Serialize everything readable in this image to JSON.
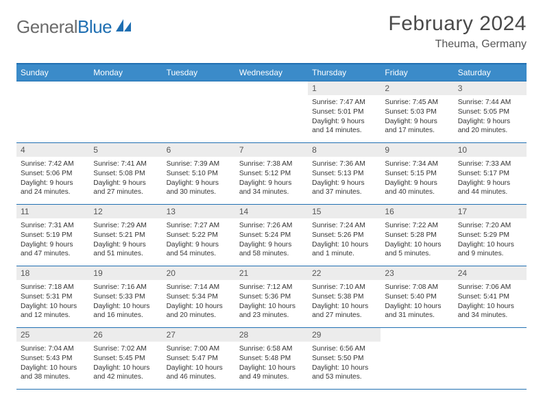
{
  "brand": {
    "part1": "General",
    "part2": "Blue"
  },
  "title": "February 2024",
  "location": "Theuma, Germany",
  "colors": {
    "header_bg": "#3b8bc9",
    "header_border": "#1f6fb2",
    "row_border": "#1f6fb2",
    "daynum_bg": "#ececec",
    "text": "#333333",
    "brand_gray": "#6b6b6b",
    "brand_blue": "#1f6fb2"
  },
  "weekdays": [
    "Sunday",
    "Monday",
    "Tuesday",
    "Wednesday",
    "Thursday",
    "Friday",
    "Saturday"
  ],
  "weeks": [
    [
      {
        "n": "",
        "sr": "",
        "ss": "",
        "dl": ""
      },
      {
        "n": "",
        "sr": "",
        "ss": "",
        "dl": ""
      },
      {
        "n": "",
        "sr": "",
        "ss": "",
        "dl": ""
      },
      {
        "n": "",
        "sr": "",
        "ss": "",
        "dl": ""
      },
      {
        "n": "1",
        "sr": "Sunrise: 7:47 AM",
        "ss": "Sunset: 5:01 PM",
        "dl": "Daylight: 9 hours and 14 minutes."
      },
      {
        "n": "2",
        "sr": "Sunrise: 7:45 AM",
        "ss": "Sunset: 5:03 PM",
        "dl": "Daylight: 9 hours and 17 minutes."
      },
      {
        "n": "3",
        "sr": "Sunrise: 7:44 AM",
        "ss": "Sunset: 5:05 PM",
        "dl": "Daylight: 9 hours and 20 minutes."
      }
    ],
    [
      {
        "n": "4",
        "sr": "Sunrise: 7:42 AM",
        "ss": "Sunset: 5:06 PM",
        "dl": "Daylight: 9 hours and 24 minutes."
      },
      {
        "n": "5",
        "sr": "Sunrise: 7:41 AM",
        "ss": "Sunset: 5:08 PM",
        "dl": "Daylight: 9 hours and 27 minutes."
      },
      {
        "n": "6",
        "sr": "Sunrise: 7:39 AM",
        "ss": "Sunset: 5:10 PM",
        "dl": "Daylight: 9 hours and 30 minutes."
      },
      {
        "n": "7",
        "sr": "Sunrise: 7:38 AM",
        "ss": "Sunset: 5:12 PM",
        "dl": "Daylight: 9 hours and 34 minutes."
      },
      {
        "n": "8",
        "sr": "Sunrise: 7:36 AM",
        "ss": "Sunset: 5:13 PM",
        "dl": "Daylight: 9 hours and 37 minutes."
      },
      {
        "n": "9",
        "sr": "Sunrise: 7:34 AM",
        "ss": "Sunset: 5:15 PM",
        "dl": "Daylight: 9 hours and 40 minutes."
      },
      {
        "n": "10",
        "sr": "Sunrise: 7:33 AM",
        "ss": "Sunset: 5:17 PM",
        "dl": "Daylight: 9 hours and 44 minutes."
      }
    ],
    [
      {
        "n": "11",
        "sr": "Sunrise: 7:31 AM",
        "ss": "Sunset: 5:19 PM",
        "dl": "Daylight: 9 hours and 47 minutes."
      },
      {
        "n": "12",
        "sr": "Sunrise: 7:29 AM",
        "ss": "Sunset: 5:21 PM",
        "dl": "Daylight: 9 hours and 51 minutes."
      },
      {
        "n": "13",
        "sr": "Sunrise: 7:27 AM",
        "ss": "Sunset: 5:22 PM",
        "dl": "Daylight: 9 hours and 54 minutes."
      },
      {
        "n": "14",
        "sr": "Sunrise: 7:26 AM",
        "ss": "Sunset: 5:24 PM",
        "dl": "Daylight: 9 hours and 58 minutes."
      },
      {
        "n": "15",
        "sr": "Sunrise: 7:24 AM",
        "ss": "Sunset: 5:26 PM",
        "dl": "Daylight: 10 hours and 1 minute."
      },
      {
        "n": "16",
        "sr": "Sunrise: 7:22 AM",
        "ss": "Sunset: 5:28 PM",
        "dl": "Daylight: 10 hours and 5 minutes."
      },
      {
        "n": "17",
        "sr": "Sunrise: 7:20 AM",
        "ss": "Sunset: 5:29 PM",
        "dl": "Daylight: 10 hours and 9 minutes."
      }
    ],
    [
      {
        "n": "18",
        "sr": "Sunrise: 7:18 AM",
        "ss": "Sunset: 5:31 PM",
        "dl": "Daylight: 10 hours and 12 minutes."
      },
      {
        "n": "19",
        "sr": "Sunrise: 7:16 AM",
        "ss": "Sunset: 5:33 PM",
        "dl": "Daylight: 10 hours and 16 minutes."
      },
      {
        "n": "20",
        "sr": "Sunrise: 7:14 AM",
        "ss": "Sunset: 5:34 PM",
        "dl": "Daylight: 10 hours and 20 minutes."
      },
      {
        "n": "21",
        "sr": "Sunrise: 7:12 AM",
        "ss": "Sunset: 5:36 PM",
        "dl": "Daylight: 10 hours and 23 minutes."
      },
      {
        "n": "22",
        "sr": "Sunrise: 7:10 AM",
        "ss": "Sunset: 5:38 PM",
        "dl": "Daylight: 10 hours and 27 minutes."
      },
      {
        "n": "23",
        "sr": "Sunrise: 7:08 AM",
        "ss": "Sunset: 5:40 PM",
        "dl": "Daylight: 10 hours and 31 minutes."
      },
      {
        "n": "24",
        "sr": "Sunrise: 7:06 AM",
        "ss": "Sunset: 5:41 PM",
        "dl": "Daylight: 10 hours and 34 minutes."
      }
    ],
    [
      {
        "n": "25",
        "sr": "Sunrise: 7:04 AM",
        "ss": "Sunset: 5:43 PM",
        "dl": "Daylight: 10 hours and 38 minutes."
      },
      {
        "n": "26",
        "sr": "Sunrise: 7:02 AM",
        "ss": "Sunset: 5:45 PM",
        "dl": "Daylight: 10 hours and 42 minutes."
      },
      {
        "n": "27",
        "sr": "Sunrise: 7:00 AM",
        "ss": "Sunset: 5:47 PM",
        "dl": "Daylight: 10 hours and 46 minutes."
      },
      {
        "n": "28",
        "sr": "Sunrise: 6:58 AM",
        "ss": "Sunset: 5:48 PM",
        "dl": "Daylight: 10 hours and 49 minutes."
      },
      {
        "n": "29",
        "sr": "Sunrise: 6:56 AM",
        "ss": "Sunset: 5:50 PM",
        "dl": "Daylight: 10 hours and 53 minutes."
      },
      {
        "n": "",
        "sr": "",
        "ss": "",
        "dl": ""
      },
      {
        "n": "",
        "sr": "",
        "ss": "",
        "dl": ""
      }
    ]
  ]
}
